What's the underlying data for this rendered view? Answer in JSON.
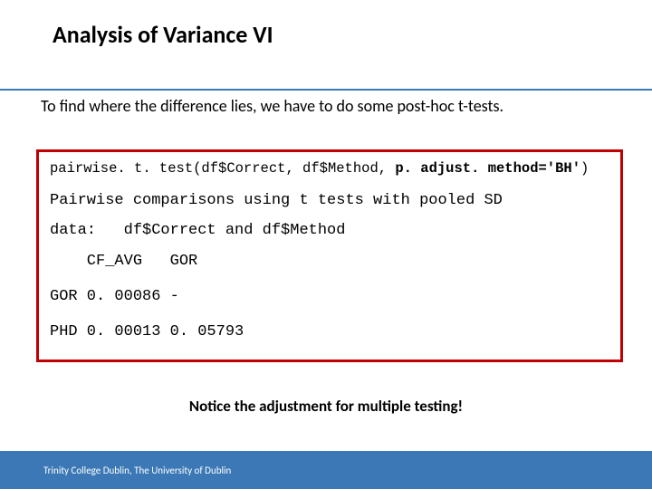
{
  "colors": {
    "accent": "#3b78b5",
    "box_border": "#c00000",
    "text": "#000000",
    "footer_text": "#ffffff",
    "background": "#ffffff"
  },
  "title": "Analysis of Variance VI",
  "intro": "To find where the difference lies, we have to do some post-hoc t-tests.",
  "code": {
    "cmd_prefix": "pairwise. t. test(df$Correct, df$Method, ",
    "cmd_bold": "p. adjust. method='BH'",
    "cmd_suffix": ")",
    "line1": "Pairwise comparisons using t tests with pooled SD",
    "line2": "data:   df$Correct and df$Method",
    "header": "    CF_AVG   GOR",
    "row1": "GOR 0. 00086 -",
    "row2": "PHD 0. 00013 0. 05793"
  },
  "notice": "Notice the adjustment for multiple testing!",
  "footer": "Trinity College Dublin, The University of Dublin"
}
